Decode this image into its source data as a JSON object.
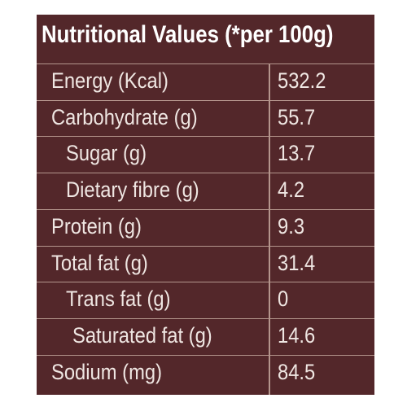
{
  "header": {
    "title": "Nutritional Values (*per 100g)"
  },
  "table": {
    "rows": [
      [
        "Energy (Kcal)",
        532.2
      ],
      [
        "Carbohydrate (g)",
        55.7
      ],
      [
        "Sugar (g)",
        13.7
      ],
      [
        "Dietary fibre (g)",
        4.2
      ],
      [
        "Protein (g)",
        9.3
      ],
      [
        "Total fat (g)",
        31.4
      ],
      [
        "Trans fat (g)",
        0
      ],
      [
        "Saturated fat (g)",
        14.6
      ],
      [
        "Sodium (mg)",
        84.5
      ]
    ]
  }
}
